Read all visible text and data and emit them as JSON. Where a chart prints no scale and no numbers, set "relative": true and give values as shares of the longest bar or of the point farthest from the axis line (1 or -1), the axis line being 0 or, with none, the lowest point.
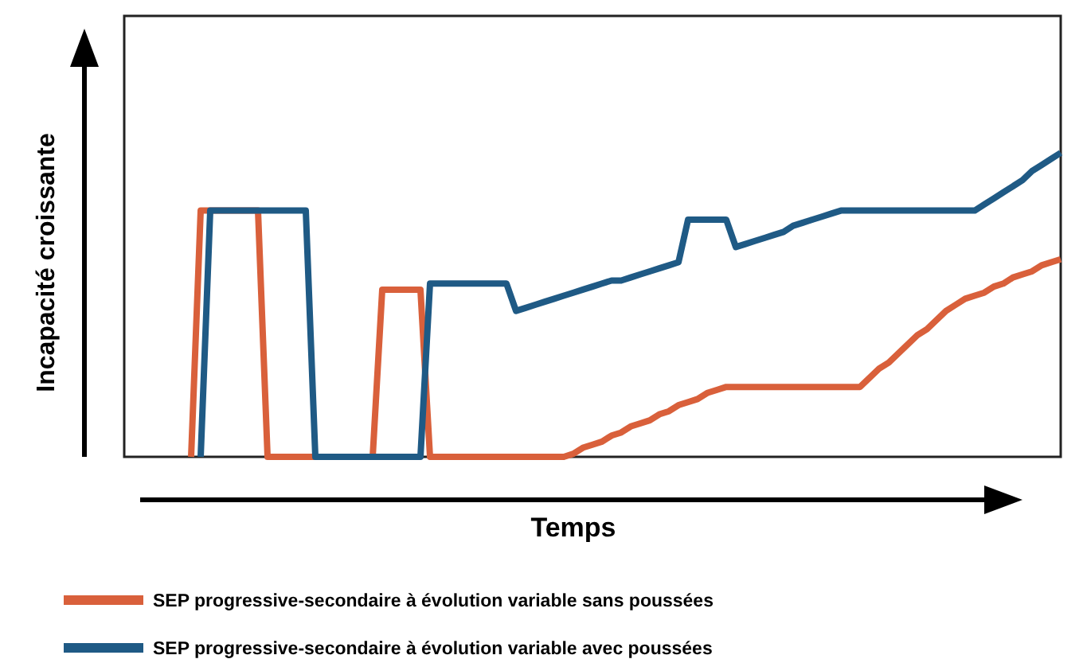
{
  "chart_data": {
    "type": "line",
    "relative": true,
    "xlabel": "Temps",
    "ylabel": "Incapacité croissante",
    "legend": "bottom",
    "marker": "none",
    "line_style": "solid",
    "grid": false,
    "categories": [
      null,
      null,
      null,
      null,
      null,
      null,
      null,
      null,
      null,
      null,
      null,
      null,
      null,
      null,
      null,
      null,
      null,
      null,
      null,
      null,
      null,
      null,
      null,
      null,
      null,
      null,
      null,
      null,
      null,
      null,
      null,
      null,
      null,
      null,
      null,
      null,
      null,
      null,
      null,
      null,
      null,
      null,
      null,
      null,
      null,
      null,
      null,
      null,
      null,
      null,
      null,
      null,
      null,
      null,
      null,
      null,
      null,
      null,
      null,
      null,
      null,
      null,
      null,
      null,
      null,
      null,
      null,
      null,
      null,
      null,
      null,
      null,
      null,
      null,
      null,
      null,
      null,
      null,
      null,
      null,
      null,
      null,
      null,
      null,
      null,
      null,
      null,
      null,
      null,
      null,
      null,
      null,
      null,
      null,
      null,
      null,
      null,
      null,
      null
    ],
    "series": [
      {
        "name": "SEP progressive-secondaire à évolution variable sans poussées",
        "color": "#d9603b",
        "values": [
          null,
          null,
          null,
          null,
          null,
          null,
          null,
          0,
          0.81,
          0.81,
          0.81,
          0.81,
          0.81,
          0.81,
          0.81,
          0,
          0,
          0,
          0,
          0,
          0,
          0,
          0,
          0,
          0,
          0,
          0,
          0.55,
          0.55,
          0.55,
          0.55,
          0.55,
          0,
          0,
          0,
          0,
          0,
          0,
          0,
          0,
          0,
          0,
          0,
          0,
          0,
          0,
          0,
          0.01,
          0.03,
          0.04,
          0.05,
          0.07,
          0.08,
          0.1,
          0.11,
          0.12,
          0.14,
          0.15,
          0.17,
          0.18,
          0.19,
          0.21,
          0.22,
          0.23,
          0.23,
          0.23,
          0.23,
          0.23,
          0.23,
          0.23,
          0.23,
          0.23,
          0.23,
          0.23,
          0.23,
          0.23,
          0.23,
          0.23,
          0.26,
          0.29,
          0.31,
          0.34,
          0.37,
          0.4,
          0.42,
          0.45,
          0.48,
          0.5,
          0.52,
          0.53,
          0.54,
          0.56,
          0.57,
          0.59,
          0.6,
          0.61,
          0.63,
          0.64,
          0.65
        ]
      },
      {
        "name": "SEP progressive-secondaire à évolution variable avec poussées",
        "color": "#1f5a85",
        "values": [
          null,
          null,
          null,
          null,
          null,
          null,
          null,
          null,
          0,
          0.81,
          0.81,
          0.81,
          0.81,
          0.81,
          0.81,
          0.81,
          0.81,
          0.81,
          0.81,
          0.81,
          0,
          0,
          0,
          0,
          0,
          0,
          0,
          0,
          0,
          0,
          0,
          0,
          0.57,
          0.57,
          0.57,
          0.57,
          0.57,
          0.57,
          0.57,
          0.57,
          0.57,
          0.48,
          0.49,
          0.5,
          0.51,
          0.52,
          0.53,
          0.54,
          0.55,
          0.56,
          0.57,
          0.58,
          0.58,
          0.59,
          0.6,
          0.61,
          0.62,
          0.63,
          0.64,
          0.78,
          0.78,
          0.78,
          0.78,
          0.78,
          0.69,
          0.7,
          0.71,
          0.72,
          0.73,
          0.74,
          0.76,
          0.77,
          0.78,
          0.79,
          0.8,
          0.81,
          0.81,
          0.81,
          0.81,
          0.81,
          0.81,
          0.81,
          0.81,
          0.81,
          0.81,
          0.81,
          0.81,
          0.81,
          0.81,
          0.81,
          0.83,
          0.85,
          0.87,
          0.89,
          0.91,
          0.94,
          0.96,
          0.98,
          1
        ]
      }
    ]
  }
}
